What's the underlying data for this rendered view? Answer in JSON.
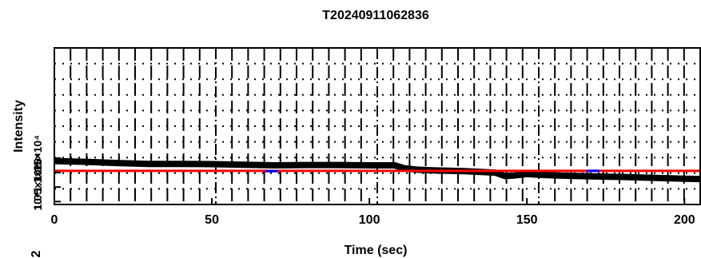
{
  "chart_data": {
    "type": "line",
    "title": "T20240911062836",
    "xlabel": "Time (sec)",
    "ylabel": "Intensity",
    "xlim": [
      0,
      205
    ],
    "ylim": [
      9900,
      15300
    ],
    "xticks": [
      0,
      50,
      100,
      150,
      200
    ],
    "xtick_labels": [
      "0",
      "50",
      "100",
      "150",
      "200"
    ],
    "yticks": [
      10000,
      10500,
      11000,
      11500
    ],
    "ytick_labels": [
      "10⁴",
      "1.05×10⁴",
      "1.1×10⁴",
      "1.15×10⁴"
    ],
    "grid": true,
    "fragment_label": "2",
    "series": [
      {
        "color": "#000000",
        "points": [
          [
            0,
            11400
          ],
          [
            10,
            11370
          ],
          [
            20,
            11330
          ],
          [
            30,
            11300
          ],
          [
            40,
            11300
          ],
          [
            50,
            11290
          ],
          [
            60,
            11270
          ],
          [
            70,
            11250
          ],
          [
            80,
            11260
          ],
          [
            90,
            11260
          ],
          [
            100,
            11250
          ],
          [
            108,
            11250
          ],
          [
            111,
            11150
          ],
          [
            115,
            11100
          ],
          [
            120,
            11080
          ],
          [
            130,
            11050
          ],
          [
            140,
            11000
          ],
          [
            143,
            10880
          ],
          [
            146,
            10900
          ],
          [
            150,
            10950
          ],
          [
            155,
            10920
          ],
          [
            160,
            10900
          ],
          [
            170,
            10870
          ],
          [
            180,
            10850
          ],
          [
            190,
            10820
          ],
          [
            200,
            10790
          ],
          [
            205,
            10780
          ]
        ]
      },
      {
        "color": "#ff0000",
        "points": [
          [
            0,
            11060
          ],
          [
            205,
            11060
          ]
        ]
      },
      {
        "color": "#0000ff",
        "points": [
          [
            67,
            11050
          ],
          [
            71,
            11050
          ]
        ]
      },
      {
        "color": "#0000ff",
        "points": [
          [
            169,
            11060
          ],
          [
            173,
            11060
          ]
        ]
      }
    ]
  }
}
